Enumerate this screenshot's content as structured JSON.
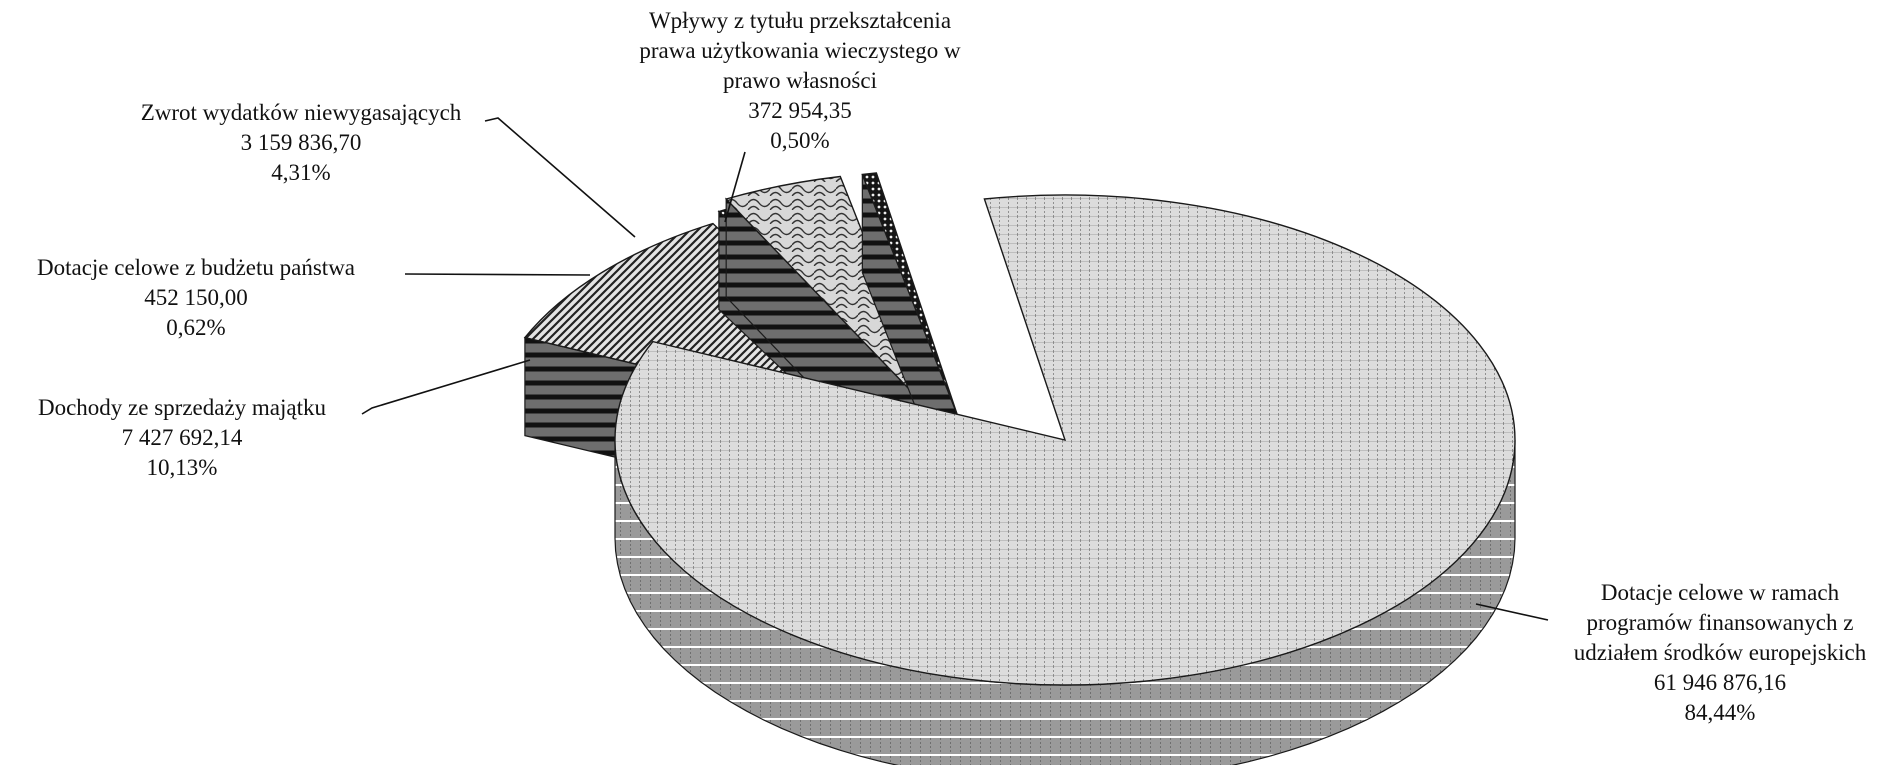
{
  "chart_data": {
    "type": "pie",
    "style": "3d-exploded",
    "colors": {
      "top_fill": "#d9d9d9",
      "side_fill": "#8c8c8c",
      "outline": "#1a1a1a",
      "pattern_ink": "#333333"
    },
    "slices": [
      {
        "label_lines": [
          "Dotacje celowe w ramach",
          "programów finansowanych z",
          "udziałem środków europejskich"
        ],
        "value_text": "61 946 876,16",
        "percent_text": "84,44%",
        "value": 61946876.16,
        "percent": 84.44
      },
      {
        "label_lines": [
          "Dochody ze sprzedaży majątku"
        ],
        "value_text": "7 427 692,14",
        "percent_text": "10,13%",
        "value": 7427692.14,
        "percent": 10.13
      },
      {
        "label_lines": [
          "Dotacje celowe z budżetu państwa"
        ],
        "value_text": "452 150,00",
        "percent_text": "0,62%",
        "value": 452150.0,
        "percent": 0.62
      },
      {
        "label_lines": [
          "Zwrot wydatków niewygasających"
        ],
        "value_text": "3 159 836,70",
        "percent_text": "4,31%",
        "value": 3159836.7,
        "percent": 4.31
      },
      {
        "label_lines": [
          "Wpływy z tytułu przekształcenia",
          "prawa użytkowania wieczystego w",
          "prawo własności"
        ],
        "value_text": "372 954,35",
        "percent_text": "0,50%",
        "value": 372954.35,
        "percent": 0.5
      }
    ]
  }
}
